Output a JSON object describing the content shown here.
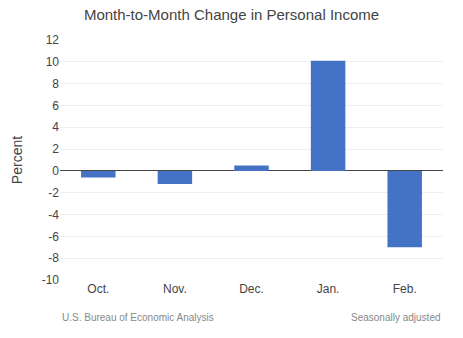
{
  "chart_data": {
    "type": "bar",
    "title": "Month-to-Month Change in Personal Income",
    "ylabel": "Percent",
    "categories": [
      "Oct.",
      "Nov.",
      "Dec.",
      "Jan.",
      "Feb."
    ],
    "values": [
      -0.6,
      -1.2,
      0.5,
      10.1,
      -7.0
    ],
    "color": "#4472c4",
    "ylim": [
      -10,
      12
    ],
    "yticks": [
      -10,
      -8,
      -6,
      -4,
      -2,
      0,
      2,
      4,
      6,
      8,
      10,
      12
    ],
    "grid": true,
    "annotations": [
      "U.S. Bureau of Economic Analysis",
      "Seasonally adjusted"
    ]
  }
}
